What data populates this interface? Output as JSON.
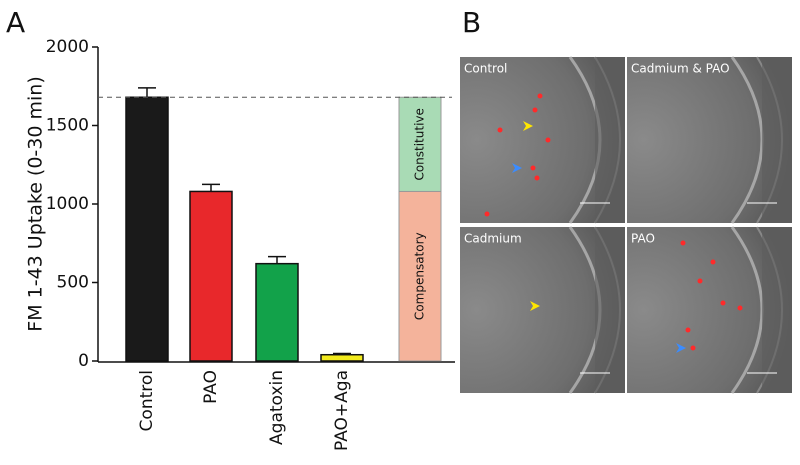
{
  "chart_data": {
    "type": "bar",
    "panel_label": "A",
    "ylabel": "FM 1-43 Uptake (0-30 min)",
    "categories": [
      "Control",
      "PAO",
      "Agatoxin",
      "PAO+Aga"
    ],
    "values": [
      1680,
      1080,
      620,
      40
    ],
    "errors": [
      60,
      45,
      45,
      8
    ],
    "colors": [
      "#1a1a1a",
      "#e8282b",
      "#12a24a",
      "#f2ea1d"
    ],
    "ylim": [
      0,
      2000
    ],
    "yticks": [
      0,
      500,
      1000,
      1500,
      2000
    ],
    "reference_line": 1680,
    "stack": [
      {
        "label": "Compensatory",
        "value": 1080,
        "color": "#f4b39b"
      },
      {
        "label": "Constitutive",
        "value": 600,
        "color": "#a9dbb5"
      }
    ]
  },
  "panel_b": {
    "panel_label": "B",
    "images": [
      "Control",
      "Cadmium & PAO",
      "Cadmium",
      "PAO"
    ]
  }
}
